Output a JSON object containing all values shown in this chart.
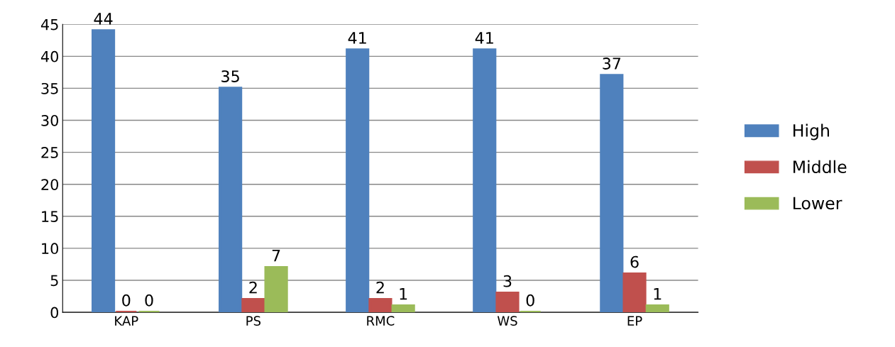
{
  "chart_data": {
    "type": "bar",
    "categories": [
      "KAP",
      "PS",
      "RMC",
      "WS",
      "EP"
    ],
    "series": [
      {
        "name": "High",
        "color": "#4f81bd",
        "values": [
          44,
          35,
          41,
          41,
          37
        ]
      },
      {
        "name": "Middle",
        "color": "#c0504d",
        "values": [
          0,
          2,
          2,
          3,
          6
        ]
      },
      {
        "name": "Lower",
        "color": "#9bbb59",
        "values": [
          0,
          7,
          1,
          0,
          1
        ]
      }
    ],
    "ylim": [
      0,
      45
    ],
    "yticks": [
      0,
      5,
      10,
      15,
      20,
      25,
      30,
      35,
      40,
      45
    ],
    "grid": "y",
    "legend": "right",
    "data_labels": true
  }
}
